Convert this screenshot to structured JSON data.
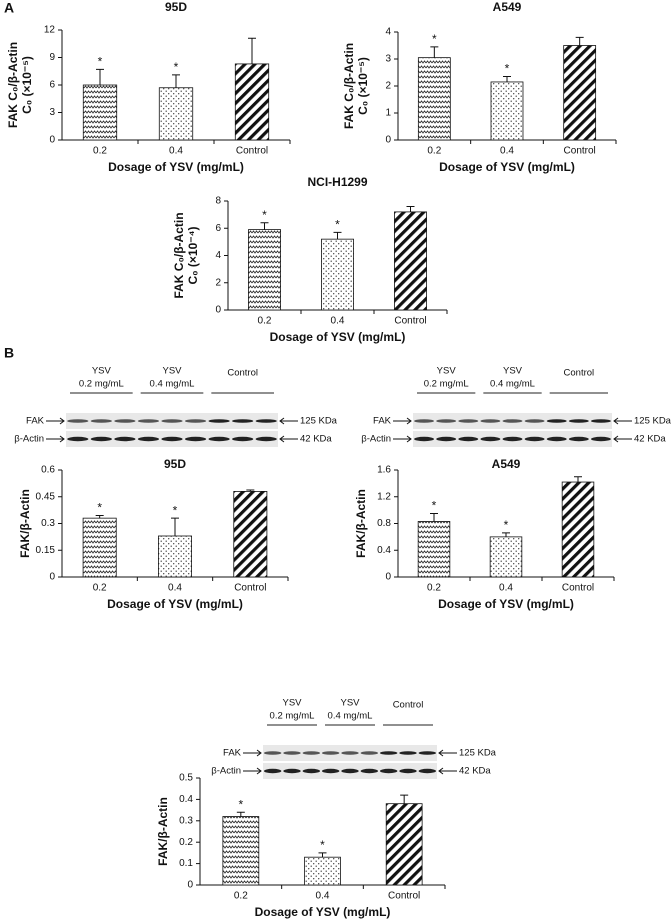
{
  "panel_labels": [
    "A",
    "B"
  ],
  "chart_data": [
    {
      "type": "bar",
      "title": "95D",
      "categories": [
        "0.2",
        "0.4",
        "Control"
      ],
      "values": [
        6.0,
        5.7,
        8.3
      ],
      "errors": [
        1.7,
        1.4,
        2.8
      ],
      "ylim": [
        0,
        12
      ],
      "yticks": [
        0,
        3,
        6,
        9,
        12
      ],
      "y_label": [
        "FAK C₀/β-Actin",
        "C₀ (×10⁻⁵)"
      ],
      "x_label": "Dosage of YSV (mg/mL)",
      "annotations": [
        {
          "index": 0,
          "text": "*"
        },
        {
          "index": 1,
          "text": "*"
        }
      ],
      "color": "#111111"
    },
    {
      "type": "bar",
      "title": "A549",
      "categories": [
        "0.2",
        "0.4",
        "Control"
      ],
      "values": [
        3.05,
        2.15,
        3.5
      ],
      "errors": [
        0.4,
        0.2,
        0.3
      ],
      "ylim": [
        0,
        4
      ],
      "yticks": [
        0,
        1,
        2,
        3,
        4
      ],
      "y_label": [
        "FAK C₀/β-Actin",
        "C₀ (×10⁻⁵)"
      ],
      "x_label": "Dosage of YSV (mg/mL)",
      "annotations": [
        {
          "index": 0,
          "text": "*"
        },
        {
          "index": 1,
          "text": "*"
        }
      ],
      "color": "#111111"
    },
    {
      "type": "bar",
      "title": "NCI-H1299",
      "categories": [
        "0.2",
        "0.4",
        "Control"
      ],
      "values": [
        5.9,
        5.2,
        7.2
      ],
      "errors": [
        0.5,
        0.5,
        0.4
      ],
      "ylim": [
        0,
        8
      ],
      "yticks": [
        0,
        2,
        4,
        6,
        8
      ],
      "y_label": [
        "FAK C₀/β-Actin",
        "C₀ (×10⁻⁴)"
      ],
      "x_label": "Dosage of YSV (mg/mL)",
      "annotations": [
        {
          "index": 0,
          "text": "*"
        },
        {
          "index": 1,
          "text": "*"
        }
      ],
      "color": "#111111"
    },
    {
      "type": "bar",
      "title": "95D",
      "categories": [
        "0.2",
        "0.4",
        "Control"
      ],
      "values": [
        0.33,
        0.23,
        0.48
      ],
      "errors": [
        0.015,
        0.1,
        0.008
      ],
      "ylim": [
        0,
        0.6
      ],
      "yticks": [
        0,
        0.15,
        0.3,
        0.45,
        0.6
      ],
      "y_label": [
        "FAK/β-Actin"
      ],
      "x_label": "Dosage of YSV (mg/mL)",
      "annotations": [
        {
          "index": 0,
          "text": "*"
        },
        {
          "index": 1,
          "text": "*"
        }
      ],
      "color": "#111111",
      "blot": {
        "groups": [
          [
            "YSV",
            "0.2 mg/mL"
          ],
          [
            "YSV",
            "0.4 mg/mL"
          ],
          [
            "Control"
          ]
        ],
        "rows": [
          [
            "FAK",
            "125 KDa"
          ],
          [
            "β-Actin",
            "42 KDa"
          ]
        ]
      }
    },
    {
      "type": "bar",
      "title": "A549",
      "categories": [
        "0.2",
        "0.4",
        "Control"
      ],
      "values": [
        0.83,
        0.6,
        1.42
      ],
      "errors": [
        0.12,
        0.06,
        0.08
      ],
      "ylim": [
        0,
        1.6
      ],
      "yticks": [
        0,
        0.4,
        0.8,
        1.2,
        1.6
      ],
      "y_label": [
        "FAK/β-Actin"
      ],
      "x_label": "Dosage of YSV (mg/mL)",
      "annotations": [
        {
          "index": 0,
          "text": "*"
        },
        {
          "index": 1,
          "text": "*"
        }
      ],
      "color": "#111111",
      "blot": {
        "groups": [
          [
            "YSV",
            "0.2 mg/mL"
          ],
          [
            "YSV",
            "0.4 mg/mL"
          ],
          [
            "Control"
          ]
        ],
        "rows": [
          [
            "FAK",
            "125 KDa"
          ],
          [
            "β-Actin",
            "42 KDa"
          ]
        ]
      }
    },
    {
      "type": "bar",
      "title": "NCI-H1299",
      "categories": [
        "0.2",
        "0.4",
        "Control"
      ],
      "values": [
        0.32,
        0.13,
        0.38
      ],
      "errors": [
        0.02,
        0.02,
        0.04
      ],
      "ylim": [
        0,
        0.5
      ],
      "yticks": [
        0,
        0.1,
        0.2,
        0.3,
        0.4,
        0.5
      ],
      "y_label": [
        "FAK/β-Actin"
      ],
      "x_label": "Dosage of YSV (mg/mL)",
      "annotations": [
        {
          "index": 0,
          "text": "*"
        },
        {
          "index": 1,
          "text": "*"
        }
      ],
      "color": "#111111",
      "blot": {
        "groups": [
          [
            "YSV",
            "0.2 mg/mL"
          ],
          [
            "YSV",
            "0.4 mg/mL"
          ],
          [
            "Control"
          ]
        ],
        "rows": [
          [
            "FAK",
            "125 KDa"
          ],
          [
            "β-Actin",
            "42 KDa"
          ]
        ]
      }
    }
  ]
}
